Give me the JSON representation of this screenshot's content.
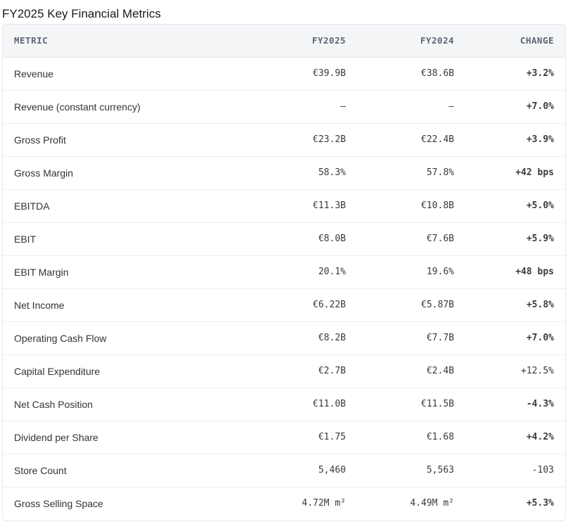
{
  "title": "FY2025 Key Financial Metrics",
  "table": {
    "headers": [
      "METRIC",
      "FY2025",
      "FY2024",
      "CHANGE"
    ],
    "rows": [
      [
        "Revenue",
        "€39.9B",
        "€38.6B",
        "+3.2%"
      ],
      [
        "Revenue (constant currency)",
        "—",
        "—",
        "+7.0%"
      ],
      [
        "Gross Profit",
        "€23.2B",
        "€22.4B",
        "+3.9%"
      ],
      [
        "Gross Margin",
        "58.3%",
        "57.8%",
        "+42 bps"
      ],
      [
        "EBITDA",
        "€11.3B",
        "€10.8B",
        "+5.0%"
      ],
      [
        "EBIT",
        "€8.0B",
        "€7.6B",
        "+5.9%"
      ],
      [
        "EBIT Margin",
        "20.1%",
        "19.6%",
        "+48 bps"
      ],
      [
        "Net Income",
        "€6.22B",
        "€5.87B",
        "+5.8%"
      ],
      [
        "Operating Cash Flow",
        "€8.2B",
        "€7.7B",
        "+7.0%"
      ],
      [
        "Capital Expenditure",
        "€2.7B",
        "€2.4B",
        "+12.5%"
      ],
      [
        "Net Cash Position",
        "€11.0B",
        "€11.5B",
        "-4.3%"
      ],
      [
        "Dividend per Share",
        "€1.75",
        "€1.68",
        "+4.2%"
      ],
      [
        "Store Count",
        "5,460",
        "5,563",
        "-103"
      ],
      [
        "Gross Selling Space",
        "4.72M m²",
        "4.49M m²",
        "+5.3%"
      ]
    ]
  }
}
